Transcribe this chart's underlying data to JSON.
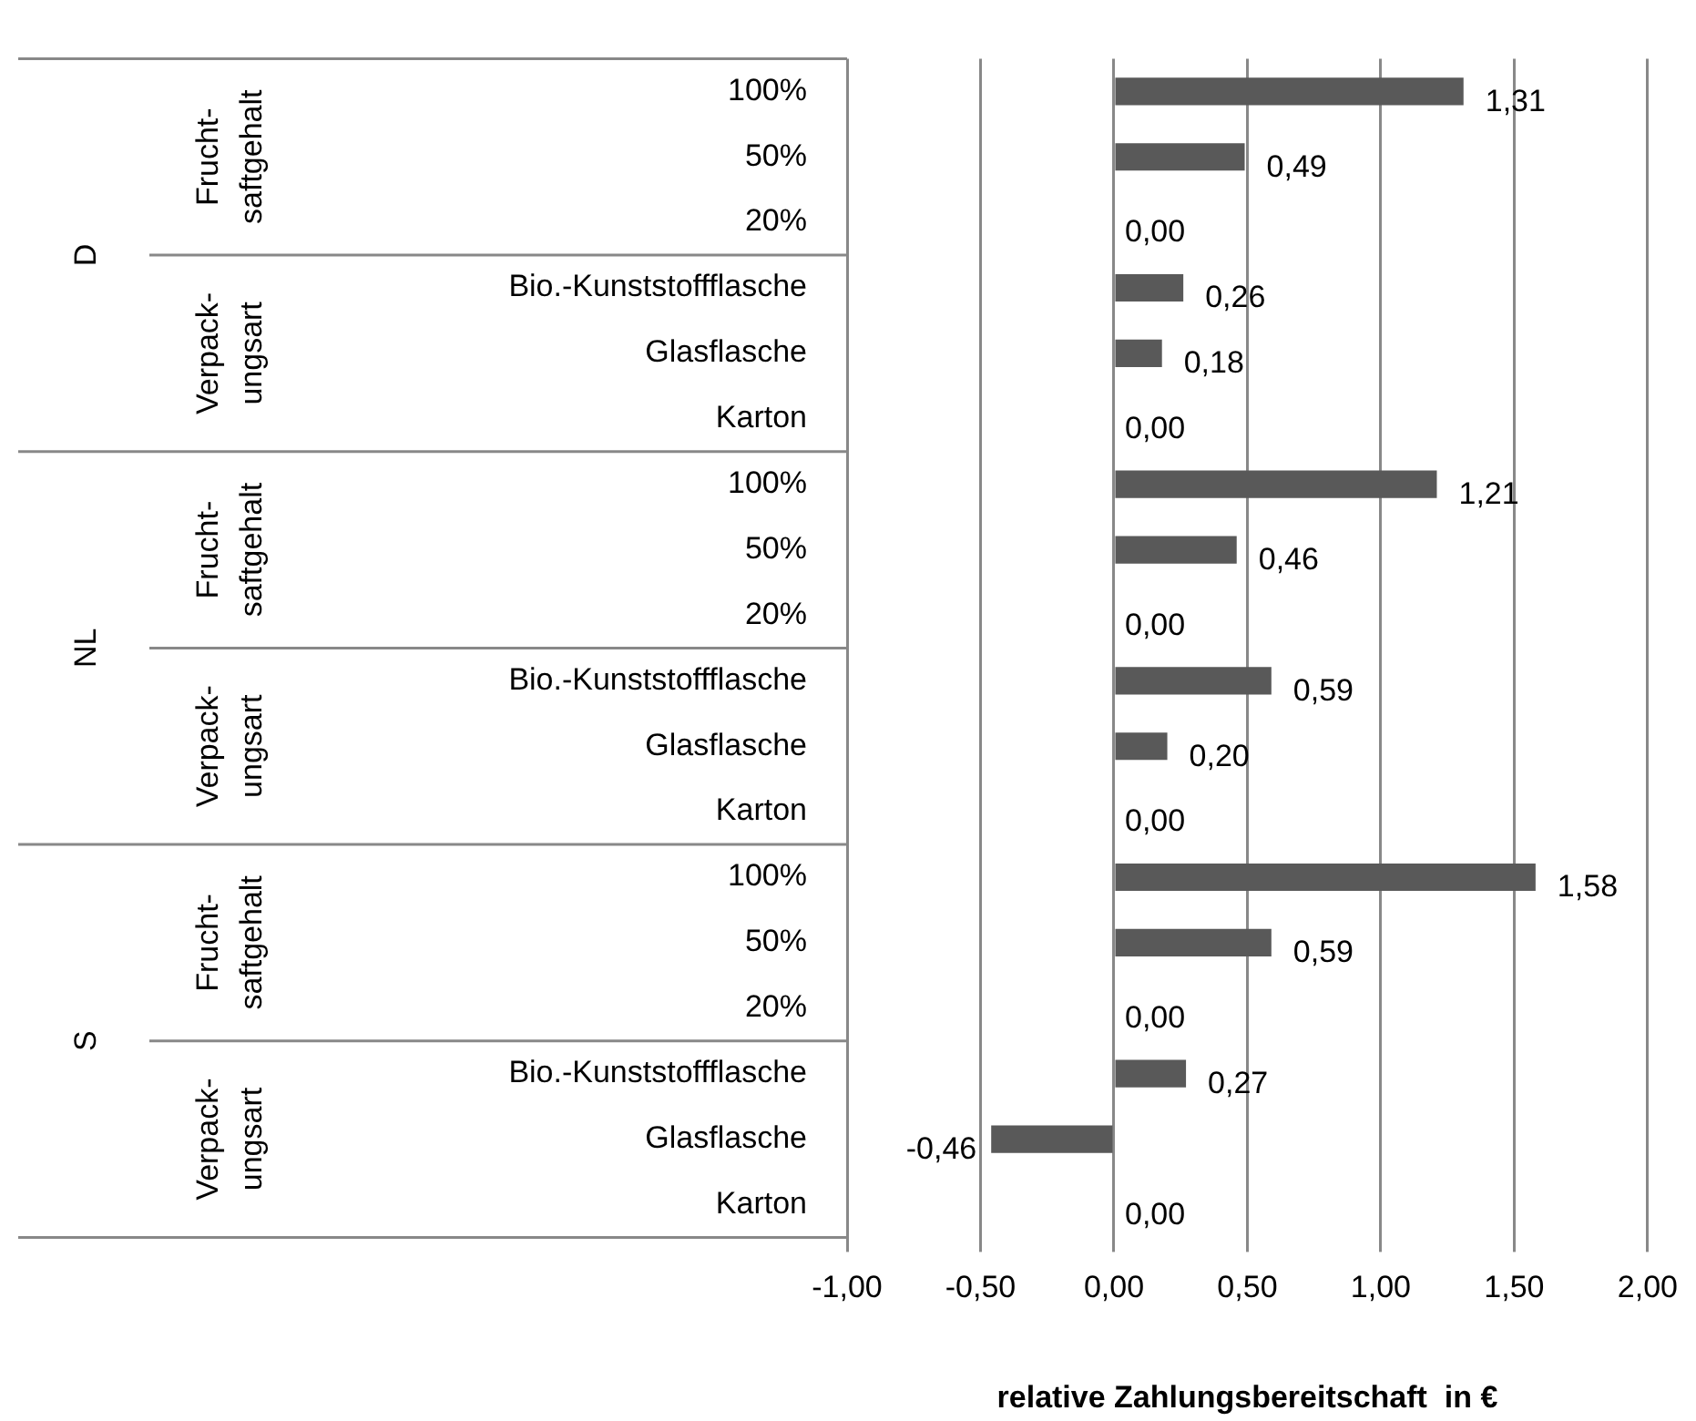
{
  "chart_data": {
    "type": "bar",
    "orientation": "horizontal",
    "categories": [
      "100%",
      "50%",
      "20%",
      "Bio.-Kunststoffflasche",
      "Glasflasche",
      "Karton",
      "100%",
      "50%",
      "20%",
      "Bio.-Kunststoffflasche",
      "Glasflasche",
      "Karton",
      "100%",
      "50%",
      "20%",
      "Bio.-Kunststoffflasche",
      "Glasflasche",
      "Karton"
    ],
    "values": [
      1.31,
      0.49,
      0.0,
      0.26,
      0.18,
      0.0,
      1.21,
      0.46,
      0.0,
      0.59,
      0.2,
      0.0,
      1.58,
      0.59,
      0.0,
      0.27,
      -0.46,
      0.0
    ],
    "color": "#595959",
    "value_labels": [
      "1,31",
      "0,49",
      "0,00",
      "0,26",
      "0,18",
      "0,00",
      "1,21",
      "0,46",
      "0,00",
      "0,59",
      "0,20",
      "0,00",
      "1,58",
      "0,59",
      "0,00",
      "0,27",
      "-0,46",
      "0,00"
    ],
    "xlabel": "relative Zahlungsbereitschaft  in €",
    "xlim": [
      -1,
      2
    ],
    "xticks": [
      {
        "value": -1,
        "label": "-1,00"
      },
      {
        "value": -0.5,
        "label": "-0,50"
      },
      {
        "value": 0,
        "label": "0,00"
      },
      {
        "value": 0.5,
        "label": "0,50"
      },
      {
        "value": 1,
        "label": "1,00"
      },
      {
        "value": 1.5,
        "label": "1,50"
      },
      {
        "value": 2,
        "label": "2,00"
      }
    ],
    "grid": "x",
    "legend": false,
    "annotations": [
      "D",
      "Frucht-\nsaftgehalt",
      "Verpack-\nungsart",
      "NL",
      "Frucht-\nsaftgehalt",
      "Verpack-\nungsart",
      "S",
      "Frucht-\nsaftgehalt",
      "Verpack-\nungsart"
    ]
  }
}
